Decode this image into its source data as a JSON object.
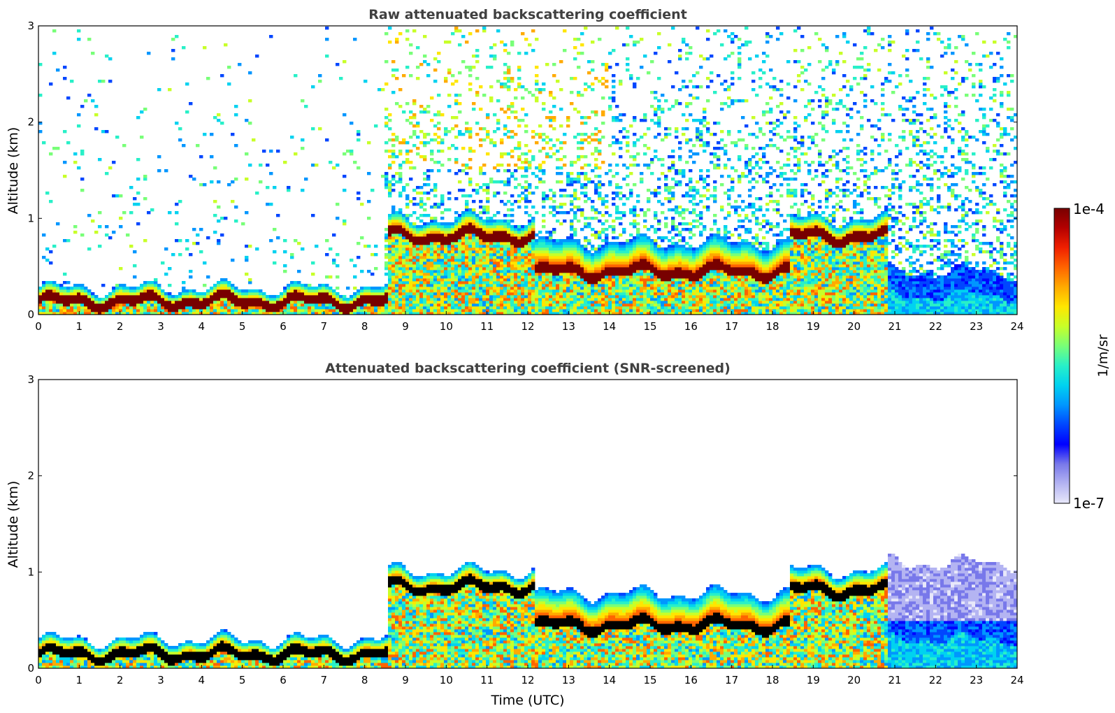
{
  "chart_data": [
    {
      "type": "heatmap",
      "title": "Raw attenuated backscattering coefficient",
      "xlabel": "",
      "ylabel": "Altitude (km)",
      "xlim": [
        0,
        24
      ],
      "ylim": [
        0,
        3
      ],
      "xticks": [
        "0",
        "1",
        "2",
        "3",
        "4",
        "5",
        "6",
        "7",
        "8",
        "9",
        "10",
        "11",
        "12",
        "13",
        "14",
        "15",
        "16",
        "17",
        "18",
        "19",
        "20",
        "21",
        "22",
        "23",
        "24"
      ],
      "yticks": [
        "0",
        "1",
        "2",
        "3"
      ],
      "color_scale": "log",
      "layers": [
        {
          "from_h": 0,
          "to_h": 8.6,
          "layer_top_km": 0.28,
          "peak_km": 0.14,
          "max_value": "1e-4"
        },
        {
          "from_h": 8.6,
          "to_h": 12.2,
          "layer_top_km": 1.0,
          "peak_km": 0.82,
          "max_value": "1e-4"
        },
        {
          "from_h": 12.2,
          "to_h": 18.4,
          "layer_top_km": 0.75,
          "peak_km": 0.45,
          "max_value": "1e-4"
        },
        {
          "from_h": 18.4,
          "to_h": 20.8,
          "layer_top_km": 1.0,
          "peak_km": 0.82,
          "max_value": "1e-4"
        },
        {
          "from_h": 20.8,
          "to_h": 24,
          "layer_top_km": 0.45,
          "peak_km": 0.2,
          "max_value": "1e-6"
        }
      ]
    },
    {
      "type": "heatmap",
      "title": "Attenuated backscattering coefficient (SNR-screened)",
      "xlabel": "Time (UTC)",
      "ylabel": "Altitude (km)",
      "xlim": [
        0,
        24
      ],
      "ylim": [
        0,
        3
      ],
      "xticks": [
        "0",
        "1",
        "2",
        "3",
        "4",
        "5",
        "6",
        "7",
        "8",
        "9",
        "10",
        "11",
        "12",
        "13",
        "14",
        "15",
        "16",
        "17",
        "18",
        "19",
        "20",
        "21",
        "22",
        "23",
        "24"
      ],
      "yticks": [
        "0",
        "1",
        "2",
        "3"
      ],
      "color_scale": "log",
      "layers": [
        {
          "from_h": 0,
          "to_h": 8.6,
          "layer_top_km": 0.3,
          "peak_km": 0.15,
          "max_value": "1e-4"
        },
        {
          "from_h": 8.6,
          "to_h": 12.2,
          "layer_top_km": 1.02,
          "peak_km": 0.85,
          "max_value": "1e-4"
        },
        {
          "from_h": 12.2,
          "to_h": 18.4,
          "layer_top_km": 0.78,
          "peak_km": 0.45,
          "max_value": "1e-4"
        },
        {
          "from_h": 18.4,
          "to_h": 20.8,
          "layer_top_km": 1.02,
          "peak_km": 0.82,
          "max_value": "1e-4"
        },
        {
          "from_h": 20.8,
          "to_h": 24,
          "layer_top_km": 1.1,
          "peak_km": 0.3,
          "max_value": "1e-6"
        }
      ]
    }
  ],
  "colorbar": {
    "max_label": "1e-4",
    "min_label": "1e-7",
    "unit_label": "1/m/sr",
    "colors": [
      "#e8e8fa",
      "#b4b4f2",
      "#7878ea",
      "#0000ff",
      "#0046ff",
      "#0096ff",
      "#00d2f0",
      "#28f0c8",
      "#78ff78",
      "#c8ff28",
      "#ffe600",
      "#ffaa00",
      "#ff6400",
      "#f02000",
      "#b40000",
      "#780000"
    ]
  }
}
